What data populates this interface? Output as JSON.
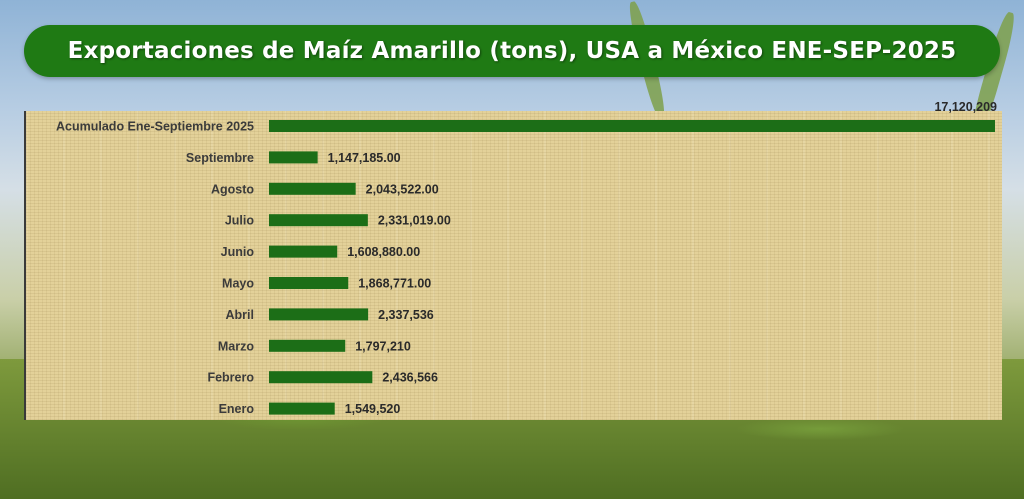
{
  "colors": {
    "title_bg": "#1f7a14",
    "title_text": "#ffffff",
    "bar": "#1c6e17",
    "panel": "#e3d199",
    "label": "#3b3b3b"
  },
  "chart_data": {
    "type": "bar",
    "orientation": "horizontal",
    "title": "Exportaciones de Maíz Amarillo (tons), USA a México ENE-SEP-2025",
    "xlabel": "",
    "ylabel": "",
    "categories": [
      "Acumulado Ene-Septiembre 2025",
      "Septiembre",
      "Agosto",
      "Julio",
      "Junio",
      "Mayo",
      "Abril",
      "Marzo",
      "Febrero",
      "Enero"
    ],
    "values": [
      17120209,
      1147185,
      2043522,
      2331019,
      1608880,
      1868771,
      2337536,
      1797210,
      2436566,
      1549520
    ],
    "value_labels": [
      "17,120,209",
      "1,147,185.00",
      "2,043,522.00",
      "2,331,019.00",
      "1,608,880.00",
      "1,868,771.00",
      "2,337,536",
      "1,797,210",
      "2,436,566",
      "1,549,520"
    ],
    "xlim": [
      0,
      17120209
    ],
    "grid": false,
    "legend": "none"
  }
}
